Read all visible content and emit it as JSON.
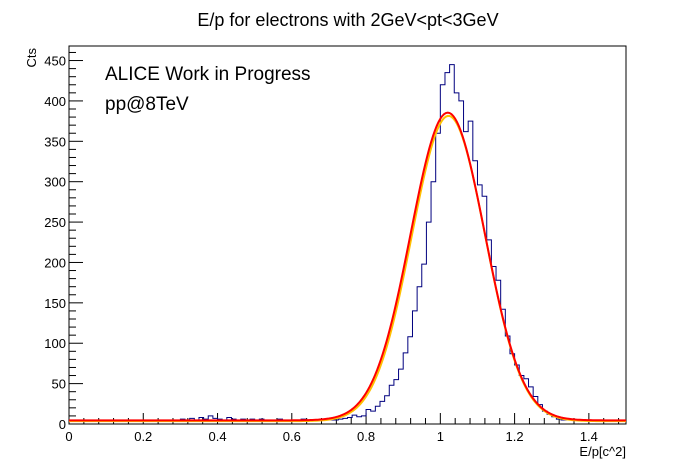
{
  "chart_data": {
    "type": "histogram",
    "title": "E/p for electrons with 2GeV<pt<3GeV",
    "xlabel": "E/p[c^2]",
    "ylabel": "Cts",
    "annotations": [
      "ALICE Work in Progress",
      "pp@8TeV"
    ],
    "xlim": [
      0,
      1.5
    ],
    "ylim": [
      0,
      468
    ],
    "x_ticks": [
      0,
      0.2,
      0.4,
      0.6,
      0.8,
      1,
      1.2,
      1.4
    ],
    "x_tick_labels": [
      "0",
      "0.2",
      "0.4",
      "0.6",
      "0.8",
      "1",
      "1.2",
      "1.4"
    ],
    "y_ticks": [
      0,
      50,
      100,
      150,
      200,
      250,
      300,
      350,
      400,
      450
    ],
    "y_tick_labels": [
      "0",
      "50",
      "100",
      "150",
      "200",
      "250",
      "300",
      "350",
      "400",
      "450"
    ],
    "grid": false,
    "bin_width": 0.0125,
    "series": [
      {
        "kind": "histogram",
        "color": "#00007f",
        "values": [
          5,
          5,
          5,
          5,
          5,
          5,
          5,
          5,
          5,
          5,
          5,
          5,
          5,
          5,
          5,
          5,
          5,
          5,
          5,
          5,
          5,
          5,
          5,
          5,
          6,
          4,
          7,
          5,
          8,
          6,
          10,
          7,
          6,
          5,
          8,
          6,
          5,
          6,
          4,
          6,
          5,
          6,
          5,
          4,
          5,
          6,
          5,
          4,
          5,
          4,
          6,
          5,
          5,
          4,
          6,
          5,
          5,
          5,
          6,
          7,
          8,
          11,
          9,
          10,
          18,
          16,
          22,
          28,
          35,
          48,
          55,
          68,
          88,
          108,
          140,
          170,
          198,
          250,
          300,
          360,
          420,
          435,
          445,
          410,
          400,
          362,
          375,
          326,
          296,
          282,
          228,
          195,
          178,
          142,
          109,
          87,
          73,
          60,
          56,
          46,
          34,
          24,
          16,
          12,
          9,
          6,
          5,
          5,
          5,
          5,
          5,
          5,
          5,
          5,
          5,
          5
        ]
      },
      {
        "kind": "fit",
        "color": "#ff0000",
        "function": "gaussian",
        "constant": 381,
        "mean": 1.02,
        "sigma": 0.1,
        "baseline": 4.5
      },
      {
        "kind": "fit",
        "color": "#ffc000",
        "function": "gaussian",
        "constant": 378,
        "mean": 1.022,
        "sigma": 0.099,
        "baseline": 3.5
      }
    ]
  }
}
